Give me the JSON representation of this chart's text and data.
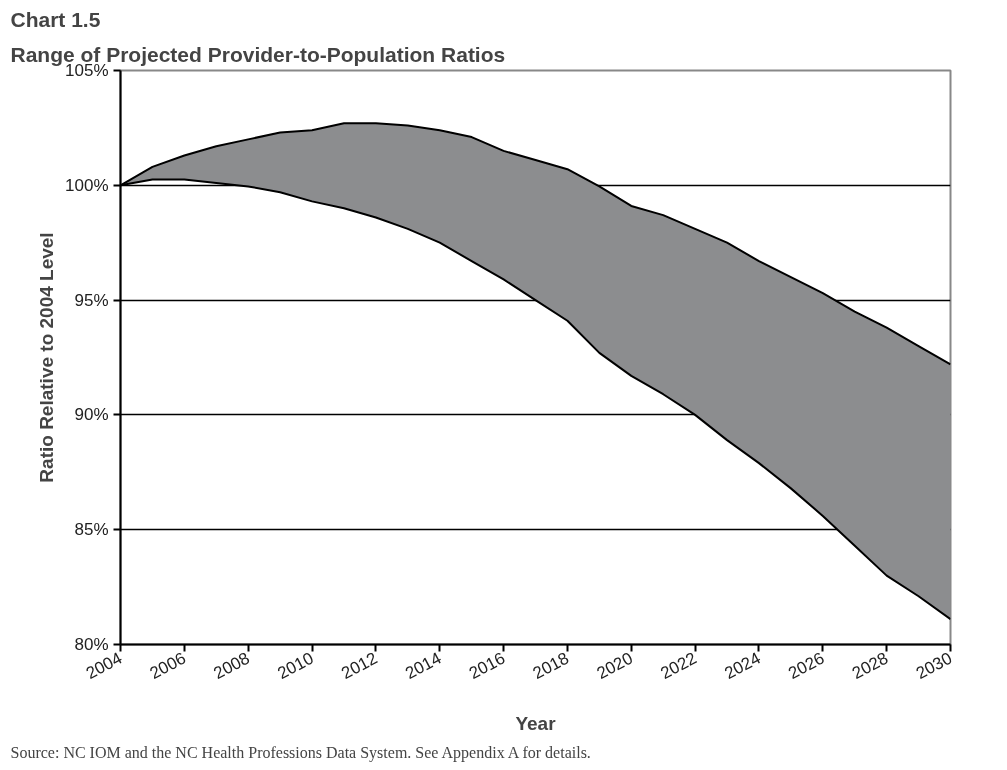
{
  "chart_data": {
    "type": "line",
    "title": "Chart 1.5",
    "subtitle": "Range of Projected Provider-to-Population Ratios",
    "xlabel": "Year",
    "ylabel": "Ratio Relative to 2004 Level",
    "x": [
      2004,
      2005,
      2006,
      2007,
      2008,
      2009,
      2010,
      2011,
      2012,
      2013,
      2014,
      2015,
      2016,
      2017,
      2018,
      2019,
      2020,
      2021,
      2022,
      2023,
      2024,
      2025,
      2026,
      2027,
      2028,
      2029,
      2030
    ],
    "series": [
      {
        "color": "#000000",
        "upper": [
          100,
          100.8,
          101.3,
          101.7,
          102.0,
          102.3,
          102.4,
          102.7,
          102.7,
          102.6,
          102.4,
          102.1,
          101.5,
          101.1,
          100.7,
          99.95,
          99.1,
          98.7,
          98.1,
          97.5,
          96.7,
          96.0,
          95.3,
          94.5,
          93.8,
          93.0,
          92.2
        ],
        "values": [
          100,
          100.8,
          101.3,
          101.7,
          102.0,
          102.3,
          102.4,
          102.7,
          102.7,
          102.6,
          102.4,
          102.1,
          101.5,
          101.1,
          100.7,
          99.95,
          99.1,
          98.7,
          98.1,
          97.5,
          96.7,
          96.0,
          95.3,
          94.5,
          93.8,
          93.0,
          92.2
        ],
        "lower": [
          100,
          100.25,
          100.25,
          100.1,
          99.95,
          99.7,
          99.3,
          99.0,
          98.6,
          98.1,
          97.5,
          96.7,
          95.9,
          95.0,
          94.1,
          92.7,
          91.7,
          90.9,
          90.0,
          88.9,
          87.9,
          86.8,
          85.6,
          84.3,
          83.0,
          82.1,
          81.1
        ]
      },
      {
        "color": "#000000",
        "values": [
          100,
          100.25,
          100.25,
          100.1,
          99.95,
          99.7,
          99.3,
          99.0,
          98.6,
          98.1,
          97.5,
          96.7,
          95.9,
          95.0,
          94.1,
          92.7,
          91.7,
          90.9,
          90.0,
          88.9,
          87.9,
          86.8,
          85.6,
          84.3,
          83.0,
          82.1,
          81.1
        ]
      }
    ],
    "xlim": [
      2004,
      2030
    ],
    "xticks": [
      2004,
      2006,
      2008,
      2010,
      2012,
      2014,
      2016,
      2018,
      2020,
      2022,
      2024,
      2026,
      2028,
      2030
    ],
    "ylim": [
      80,
      105
    ],
    "yticks": [
      {
        "value": 80,
        "label": "80%"
      },
      {
        "value": 85,
        "label": "85%"
      },
      {
        "value": 90,
        "label": "90%"
      },
      {
        "value": 95,
        "label": "95%"
      },
      {
        "value": 100,
        "label": "100%"
      },
      {
        "value": 105,
        "label": "105%"
      }
    ],
    "grid": "y",
    "annotations": [
      "Source: NC IOM and the NC Health Professions Data System. See Appendix A for details."
    ]
  }
}
